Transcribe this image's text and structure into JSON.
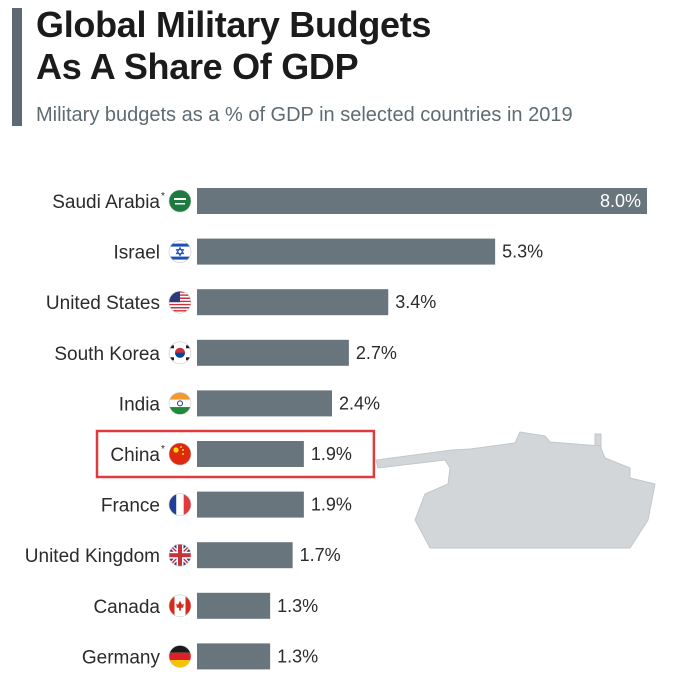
{
  "chart_data": {
    "type": "bar",
    "orientation": "horizontal",
    "title_lines": [
      "Global Military Budgets",
      "As A Share Of GDP"
    ],
    "subtitle": "Military budgets as a % of GDP in selected countries in 2019",
    "categories": [
      "Saudi Arabia",
      "Israel",
      "United States",
      "South Korea",
      "India",
      "China",
      "France",
      "United Kingdom",
      "Canada",
      "Germany"
    ],
    "asterisk": [
      true,
      false,
      false,
      false,
      false,
      true,
      false,
      false,
      false,
      false
    ],
    "values": [
      8.0,
      5.3,
      3.4,
      2.7,
      2.4,
      1.9,
      1.9,
      1.7,
      1.3,
      1.3
    ],
    "value_labels": [
      "8.0%",
      "5.3%",
      "3.4%",
      "2.7%",
      "2.4%",
      "1.9%",
      "1.9%",
      "1.7%",
      "1.3%",
      "1.3%"
    ],
    "flags": [
      "saudi-arabia-flag-icon",
      "israel-flag-icon",
      "united-states-flag-icon",
      "south-korea-flag-icon",
      "india-flag-icon",
      "china-flag-icon",
      "france-flag-icon",
      "united-kingdom-flag-icon",
      "canada-flag-icon",
      "germany-flag-icon"
    ],
    "highlighted_category": "China",
    "xlim": [
      0,
      8.0
    ],
    "bar_color": "#68757d",
    "highlight_color": "#e03a3e",
    "grid": false
  }
}
